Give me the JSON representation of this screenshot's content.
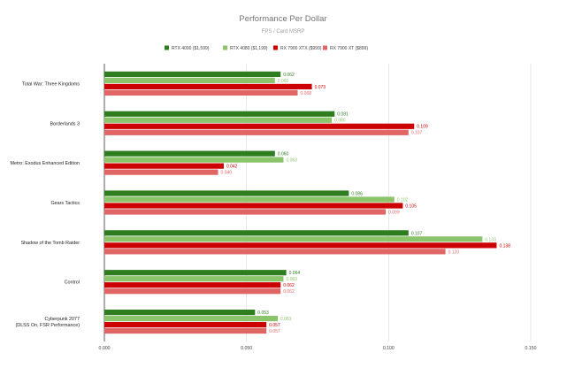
{
  "chart_data": {
    "type": "bar",
    "orientation": "horizontal",
    "title": "Performance Per Dollar",
    "subtitle": "FPS / Card MSRP",
    "xlabel": "",
    "ylabel": "",
    "xlim": [
      0,
      0.15
    ],
    "x_ticks": [
      "0.000",
      "0.050",
      "0.100",
      "0.150"
    ],
    "grid": true,
    "legend_position": "top",
    "categories": [
      [
        "Total War: Three Kingdoms"
      ],
      [
        "Borderlands 3"
      ],
      [
        "Metro: Exodus Enhanced Edition"
      ],
      [
        "Gears Tactics"
      ],
      [
        "Shadow of the Tomb Raider"
      ],
      [
        "Control"
      ],
      [
        "Cyberpunk 2077",
        "(DLSS On, FSR Performance)"
      ]
    ],
    "series": [
      {
        "name": "RTX 4090 ($1,599)",
        "color": "#2e7d1f",
        "label_color": "#2e7d1f",
        "values": [
          0.062,
          0.081,
          0.06,
          0.086,
          0.107,
          0.064,
          0.053
        ],
        "labels": [
          "0.062",
          "0.081",
          "0.060",
          "0.086",
          "0.107",
          "0.064",
          "0.053"
        ]
      },
      {
        "name": "RTX 4080 ($1,199)",
        "color": "#8cc46b",
        "label_color": "#8cc46b",
        "values": [
          0.06,
          0.08,
          0.063,
          0.102,
          0.133,
          0.063,
          0.061
        ],
        "labels": [
          "0.060",
          "0.080",
          "0.063",
          "0.102",
          "0.133",
          "0.063",
          "0.061"
        ]
      },
      {
        "name": "RX 7900 XTX ($999)",
        "color": "#cc0000",
        "label_color": "#cc0000",
        "values": [
          0.073,
          0.109,
          0.042,
          0.105,
          0.138,
          0.062,
          0.057
        ],
        "labels": [
          "0.073",
          "0.109",
          "0.042",
          "0.105",
          "0.138",
          "0.062",
          "0.057"
        ]
      },
      {
        "name": "RX 7900 XT ($899)",
        "color": "#e06666",
        "label_color": "#e06666",
        "values": [
          0.068,
          0.107,
          0.04,
          0.099,
          0.12,
          0.062,
          0.057
        ],
        "labels": [
          "0.068",
          "0.107",
          "0.040",
          "0.099",
          "0.120",
          "0.062",
          "0.057"
        ]
      }
    ]
  }
}
